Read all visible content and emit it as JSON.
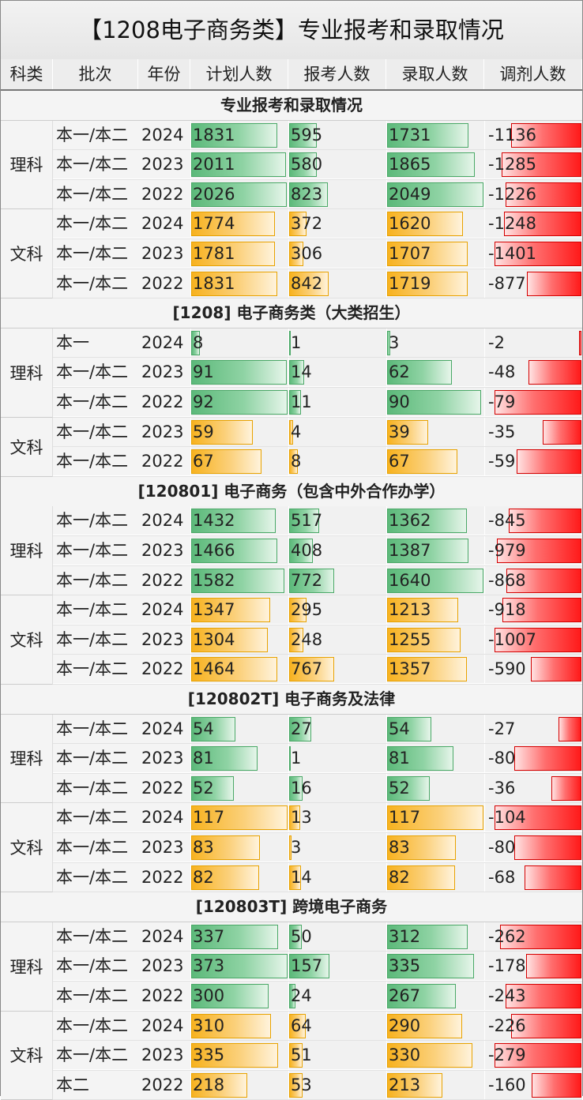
{
  "title": "【1208电子商务类】专业报考和录取情况",
  "headers": [
    "科类",
    "批次",
    "年份",
    "计划人数",
    "报考人数",
    "录取人数",
    "调剂人数"
  ],
  "colors": {
    "plan_sci": "#5cb97a",
    "plan_art": "#f7b21f",
    "adjust": "#ff1a1a"
  },
  "chart_data": {
    "type": "table",
    "columns": [
      "科类",
      "批次",
      "年份",
      "计划人数",
      "报考人数",
      "录取人数",
      "调剂人数"
    ],
    "sections": [
      {
        "title": "专业报考和录取情况",
        "groups": [
          {
            "category": "理科",
            "rows": [
              {
                "batch": "本一/本二",
                "year": "2024",
                "plan": 1831,
                "apply": 595,
                "admit": 1731,
                "adjust": -1136
              },
              {
                "batch": "本一/本二",
                "year": "2023",
                "plan": 2011,
                "apply": 580,
                "admit": 1865,
                "adjust": -1285
              },
              {
                "batch": "本一/本二",
                "year": "2022",
                "plan": 2026,
                "apply": 823,
                "admit": 2049,
                "adjust": -1226
              }
            ]
          },
          {
            "category": "文科",
            "rows": [
              {
                "batch": "本一/本二",
                "year": "2024",
                "plan": 1774,
                "apply": 372,
                "admit": 1620,
                "adjust": -1248
              },
              {
                "batch": "本一/本二",
                "year": "2023",
                "plan": 1781,
                "apply": 306,
                "admit": 1707,
                "adjust": -1401
              },
              {
                "batch": "本一/本二",
                "year": "2022",
                "plan": 1831,
                "apply": 842,
                "admit": 1719,
                "adjust": -877
              }
            ]
          }
        ]
      },
      {
        "title": "[1208] 电子商务类（大类招生）",
        "groups": [
          {
            "category": "理科",
            "rows": [
              {
                "batch": "本一",
                "year": "2024",
                "plan": 8,
                "apply": 1,
                "admit": 3,
                "adjust": -2
              },
              {
                "batch": "本一/本二",
                "year": "2023",
                "plan": 91,
                "apply": 14,
                "admit": 62,
                "adjust": -48
              },
              {
                "batch": "本一/本二",
                "year": "2022",
                "plan": 92,
                "apply": 11,
                "admit": 90,
                "adjust": -79
              }
            ]
          },
          {
            "category": "文科",
            "rows": [
              {
                "batch": "本一/本二",
                "year": "2023",
                "plan": 59,
                "apply": 4,
                "admit": 39,
                "adjust": -35
              },
              {
                "batch": "本一/本二",
                "year": "2022",
                "plan": 67,
                "apply": 8,
                "admit": 67,
                "adjust": -59
              }
            ]
          }
        ]
      },
      {
        "title": "[120801] 电子商务（包含中外合作办学）",
        "groups": [
          {
            "category": "理科",
            "rows": [
              {
                "batch": "本一/本二",
                "year": "2024",
                "plan": 1432,
                "apply": 517,
                "admit": 1362,
                "adjust": -845
              },
              {
                "batch": "本一/本二",
                "year": "2023",
                "plan": 1466,
                "apply": 408,
                "admit": 1387,
                "adjust": -979
              },
              {
                "batch": "本一/本二",
                "year": "2022",
                "plan": 1582,
                "apply": 772,
                "admit": 1640,
                "adjust": -868
              }
            ]
          },
          {
            "category": "文科",
            "rows": [
              {
                "batch": "本一/本二",
                "year": "2024",
                "plan": 1347,
                "apply": 295,
                "admit": 1213,
                "adjust": -918
              },
              {
                "batch": "本一/本二",
                "year": "2023",
                "plan": 1304,
                "apply": 248,
                "admit": 1255,
                "adjust": -1007
              },
              {
                "batch": "本一/本二",
                "year": "2022",
                "plan": 1464,
                "apply": 767,
                "admit": 1357,
                "adjust": -590
              }
            ]
          }
        ]
      },
      {
        "title": "[120802T] 电子商务及法律",
        "groups": [
          {
            "category": "理科",
            "rows": [
              {
                "batch": "本一/本二",
                "year": "2024",
                "plan": 54,
                "apply": 27,
                "admit": 54,
                "adjust": -27
              },
              {
                "batch": "本一/本二",
                "year": "2023",
                "plan": 81,
                "apply": 1,
                "admit": 81,
                "adjust": -80
              },
              {
                "batch": "本一/本二",
                "year": "2022",
                "plan": 52,
                "apply": 16,
                "admit": 52,
                "adjust": -36
              }
            ]
          },
          {
            "category": "文科",
            "rows": [
              {
                "batch": "本一/本二",
                "year": "2024",
                "plan": 117,
                "apply": 13,
                "admit": 117,
                "adjust": -104
              },
              {
                "batch": "本一/本二",
                "year": "2023",
                "plan": 83,
                "apply": 3,
                "admit": 83,
                "adjust": -80
              },
              {
                "batch": "本一/本二",
                "year": "2022",
                "plan": 82,
                "apply": 14,
                "admit": 82,
                "adjust": -68
              }
            ]
          }
        ]
      },
      {
        "title": "[120803T] 跨境电子商务",
        "groups": [
          {
            "category": "理科",
            "rows": [
              {
                "batch": "本一/本二",
                "year": "2024",
                "plan": 337,
                "apply": 50,
                "admit": 312,
                "adjust": -262
              },
              {
                "batch": "本一/本二",
                "year": "2023",
                "plan": 373,
                "apply": 157,
                "admit": 335,
                "adjust": -178
              },
              {
                "batch": "本一/本二",
                "year": "2022",
                "plan": 300,
                "apply": 24,
                "admit": 267,
                "adjust": -243
              }
            ]
          },
          {
            "category": "文科",
            "rows": [
              {
                "batch": "本一/本二",
                "year": "2024",
                "plan": 310,
                "apply": 64,
                "admit": 290,
                "adjust": -226
              },
              {
                "batch": "本一/本二",
                "year": "2023",
                "plan": 335,
                "apply": 51,
                "admit": 330,
                "adjust": -279
              },
              {
                "batch": "本二",
                "year": "2022",
                "plan": 218,
                "apply": 53,
                "admit": 213,
                "adjust": -160
              }
            ]
          }
        ]
      }
    ]
  }
}
